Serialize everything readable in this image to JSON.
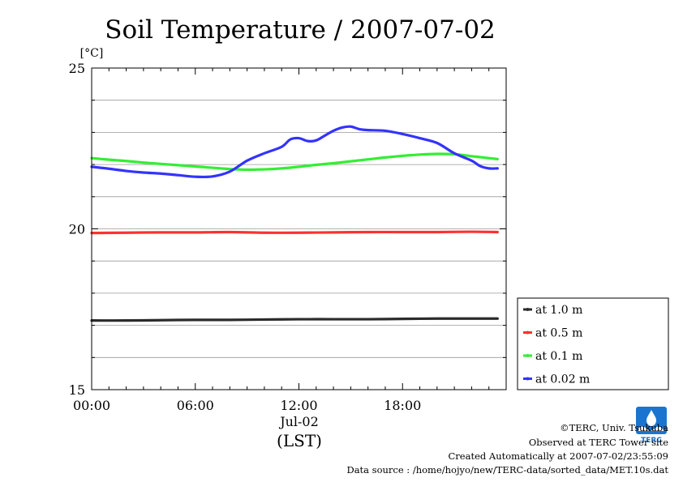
{
  "chart_data": {
    "type": "line",
    "title": "Soil Temperature / 2007-07-02",
    "ylabel": "[°C]",
    "xlabel": "(LST)",
    "date_label": "Jul-02",
    "x_ticks": [
      "00:00",
      "06:00",
      "12:00",
      "18:00"
    ],
    "x_tick_values": [
      0,
      6,
      12,
      18
    ],
    "xlim": [
      0,
      24
    ],
    "ylim": [
      15,
      25
    ],
    "y_ticks": [
      15,
      20,
      25
    ],
    "y_tick_labels": [
      "15",
      "20",
      "25"
    ],
    "y_grid": [
      16,
      17,
      18,
      19,
      21,
      22,
      23,
      24
    ],
    "grid": true,
    "legend_position": "right",
    "series": [
      {
        "name": "at 1.0 m",
        "color": "#2b2b2b",
        "x": [
          0,
          2,
          4,
          6,
          8,
          10,
          12,
          14,
          16,
          18,
          20,
          22,
          23.5
        ],
        "values": [
          17.15,
          17.15,
          17.16,
          17.17,
          17.17,
          17.18,
          17.19,
          17.19,
          17.19,
          17.2,
          17.21,
          17.21,
          17.21
        ]
      },
      {
        "name": "at 0.5 m",
        "color": "#ff3030",
        "x": [
          0,
          2,
          4,
          6,
          8,
          10,
          12,
          14,
          16,
          18,
          20,
          22,
          23.5
        ],
        "values": [
          19.87,
          19.88,
          19.89,
          19.89,
          19.9,
          19.88,
          19.88,
          19.89,
          19.9,
          19.9,
          19.9,
          19.91,
          19.9
        ]
      },
      {
        "name": "at 0.1 m",
        "color": "#33ee33",
        "x": [
          0,
          1,
          2,
          3,
          4,
          5,
          6,
          7,
          8,
          9,
          10,
          11,
          12,
          13,
          14,
          15,
          16,
          17,
          18,
          19,
          20,
          21,
          22,
          23,
          23.5
        ],
        "values": [
          22.2,
          22.15,
          22.11,
          22.06,
          22.02,
          21.98,
          21.94,
          21.9,
          21.86,
          21.84,
          21.85,
          21.88,
          21.93,
          21.99,
          22.04,
          22.1,
          22.16,
          22.22,
          22.27,
          22.31,
          22.33,
          22.32,
          22.26,
          22.2,
          22.17
        ]
      },
      {
        "name": "at 0.02 m",
        "color": "#3333ff",
        "x": [
          0,
          1,
          2,
          3,
          4,
          5,
          6,
          7,
          8,
          9,
          10,
          11,
          11.5,
          12,
          12.5,
          13,
          13.5,
          14,
          14.5,
          15,
          15.5,
          16,
          17,
          18,
          19,
          20,
          21,
          22,
          22.5,
          23,
          23.5
        ],
        "values": [
          21.93,
          21.87,
          21.8,
          21.75,
          21.72,
          21.67,
          21.62,
          21.63,
          21.78,
          22.12,
          22.35,
          22.55,
          22.78,
          22.82,
          22.73,
          22.75,
          22.9,
          23.05,
          23.15,
          23.18,
          23.1,
          23.07,
          23.05,
          22.95,
          22.82,
          22.67,
          22.35,
          22.12,
          21.95,
          21.88,
          21.88
        ]
      }
    ]
  },
  "footer": {
    "copyright": "©TERC, Univ. Tsukuba",
    "site": "Observed at TERC Tower site",
    "created": "Created Automatically at 2007-07-02/23:55:09",
    "source": "Data source : /home/hojyo/new/TERC-data/sorted_data/MET.10s.dat"
  },
  "logo": {
    "text": "TERC",
    "color": "#1b75d0"
  }
}
